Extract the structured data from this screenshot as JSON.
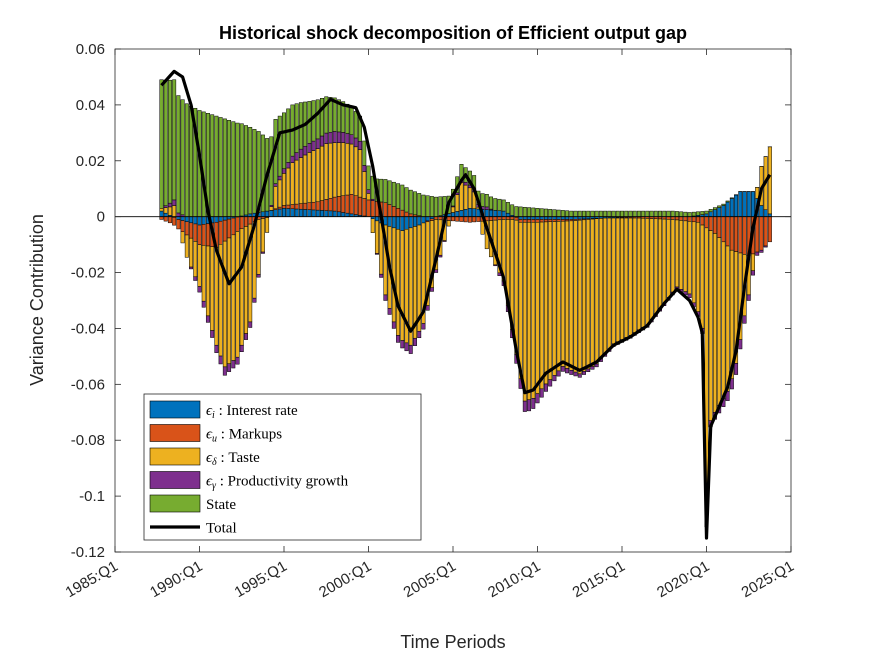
{
  "chart_data": {
    "type": "bar",
    "stacked": true,
    "title": "Historical shock decomposition of Efficient output gap",
    "xlabel": "Time Periods",
    "ylabel": "Variance Contribution",
    "x_range": [
      1985.0,
      2025.0
    ],
    "ylim": [
      -0.12,
      0.06
    ],
    "yticks": [
      0.06,
      0.04,
      0.02,
      0,
      -0.02,
      -0.04,
      -0.06,
      -0.08,
      -0.1,
      -0.12
    ],
    "ytick_labels": [
      "0.06",
      "0.04",
      "0.02",
      "0",
      "-0.02",
      "-0.04",
      "-0.06",
      "-0.08",
      "-0.1",
      "-0.12"
    ],
    "xticks": [
      1985,
      1990,
      1995,
      2000,
      2005,
      2010,
      2015,
      2020,
      2025
    ],
    "xtick_labels": [
      "1985:Q1",
      "1990:Q1",
      "1995:Q1",
      "2000:Q1",
      "2005:Q1",
      "2010:Q1",
      "2015:Q1",
      "2020:Q1",
      "2025:Q1"
    ],
    "grid": false,
    "legend_position": "bottom-left",
    "quarterly_start": "1987:Q4",
    "quarterly_end": "2023:Q4",
    "series": [
      {
        "key": "interest",
        "name": "Interest rate",
        "symbol": "ϵ",
        "subscript": "i",
        "color": "#0072BD",
        "keyframes": [
          [
            1987.75,
            0.002
          ],
          [
            1988.75,
            -0.001
          ],
          [
            1990.0,
            -0.003
          ],
          [
            1991.0,
            -0.002
          ],
          [
            1993.0,
            0.001
          ],
          [
            1995.0,
            0.003
          ],
          [
            1998.0,
            0.002
          ],
          [
            2000.0,
            0.0
          ],
          [
            2001.0,
            -0.003
          ],
          [
            2002.0,
            -0.005
          ],
          [
            2003.0,
            -0.003
          ],
          [
            2004.0,
            0.0
          ],
          [
            2006.0,
            0.003
          ],
          [
            2008.0,
            0.002
          ],
          [
            2009.0,
            -0.001
          ],
          [
            2012.0,
            -0.001
          ],
          [
            2016.0,
            0.0
          ],
          [
            2019.0,
            0.0
          ],
          [
            2020.0,
            0.001
          ],
          [
            2021.0,
            0.004
          ],
          [
            2022.0,
            0.009
          ],
          [
            2022.75,
            0.009
          ],
          [
            2023.25,
            0.004
          ],
          [
            2023.75,
            0.001
          ]
        ]
      },
      {
        "key": "markups",
        "name": "Markups",
        "symbol": "ϵ",
        "subscript": "u",
        "color": "#D95319",
        "keyframes": [
          [
            1987.75,
            -0.001
          ],
          [
            1989.0,
            -0.004
          ],
          [
            1990.0,
            -0.007
          ],
          [
            1991.0,
            -0.009
          ],
          [
            1992.0,
            -0.006
          ],
          [
            1993.5,
            -0.001
          ],
          [
            1995.0,
            0.001
          ],
          [
            1997.0,
            0.003
          ],
          [
            1999.0,
            0.007
          ],
          [
            2001.0,
            0.005
          ],
          [
            2002.5,
            0.001
          ],
          [
            2004.0,
            -0.001
          ],
          [
            2006.0,
            -0.002
          ],
          [
            2008.0,
            -0.001
          ],
          [
            2010.0,
            -0.001
          ],
          [
            2014.0,
            0.0
          ],
          [
            2018.0,
            -0.001
          ],
          [
            2019.5,
            -0.002
          ],
          [
            2020.5,
            -0.006
          ],
          [
            2021.5,
            -0.012
          ],
          [
            2022.5,
            -0.014
          ],
          [
            2023.25,
            -0.012
          ],
          [
            2023.75,
            -0.009
          ]
        ]
      },
      {
        "key": "taste",
        "name": "Taste",
        "symbol": "ϵ",
        "subscript": "δ",
        "color": "#EDB120",
        "keyframes": [
          [
            1987.75,
            0.001
          ],
          [
            1988.5,
            0.004
          ],
          [
            1989.25,
            -0.008
          ],
          [
            1990.0,
            -0.015
          ],
          [
            1990.75,
            -0.03
          ],
          [
            1991.5,
            -0.045
          ],
          [
            1992.25,
            -0.045
          ],
          [
            1993.0,
            -0.035
          ],
          [
            1993.75,
            -0.012
          ],
          [
            1994.5,
            0.008
          ],
          [
            1995.5,
            0.015
          ],
          [
            1996.5,
            0.018
          ],
          [
            1997.5,
            0.02
          ],
          [
            1998.5,
            0.019
          ],
          [
            1999.5,
            0.017
          ],
          [
            2000.25,
            -0.005
          ],
          [
            2001.0,
            -0.025
          ],
          [
            2001.75,
            -0.038
          ],
          [
            2002.5,
            -0.042
          ],
          [
            2003.25,
            -0.036
          ],
          [
            2004.0,
            -0.018
          ],
          [
            2004.75,
            -0.002
          ],
          [
            2005.5,
            0.01
          ],
          [
            2006.25,
            0.006
          ],
          [
            2007.0,
            -0.01
          ],
          [
            2008.0,
            -0.022
          ],
          [
            2008.75,
            -0.048
          ],
          [
            2009.25,
            -0.064
          ],
          [
            2009.75,
            -0.063
          ],
          [
            2010.5,
            -0.058
          ],
          [
            2011.5,
            -0.052
          ],
          [
            2012.5,
            -0.055
          ],
          [
            2013.5,
            -0.052
          ],
          [
            2014.5,
            -0.045
          ],
          [
            2015.5,
            -0.042
          ],
          [
            2016.5,
            -0.038
          ],
          [
            2017.5,
            -0.03
          ],
          [
            2018.25,
            -0.024
          ],
          [
            2019.0,
            -0.026
          ],
          [
            2019.5,
            -0.032
          ],
          [
            2019.9,
            -0.04
          ],
          [
            2020.0,
            -0.105
          ],
          [
            2020.25,
            -0.068
          ],
          [
            2020.75,
            -0.06
          ],
          [
            2021.25,
            -0.052
          ],
          [
            2021.75,
            -0.04
          ],
          [
            2022.25,
            -0.022
          ],
          [
            2022.75,
            -0.006
          ],
          [
            2023.25,
            0.014
          ],
          [
            2023.75,
            0.024
          ]
        ]
      },
      {
        "key": "productivity",
        "name": "Productivity growth",
        "symbol": "ϵ",
        "subscript": "γ",
        "color": "#7E2F8E",
        "keyframes": [
          [
            1987.75,
            0.0
          ],
          [
            1988.5,
            0.002
          ],
          [
            1990.0,
            -0.002
          ],
          [
            1991.5,
            -0.003
          ],
          [
            1993.0,
            -0.002
          ],
          [
            1994.5,
            0.001
          ],
          [
            1996.0,
            0.003
          ],
          [
            1998.0,
            0.004
          ],
          [
            1999.5,
            0.003
          ],
          [
            2001.0,
            -0.002
          ],
          [
            2002.5,
            -0.003
          ],
          [
            2004.0,
            -0.001
          ],
          [
            2005.5,
            0.001
          ],
          [
            2007.0,
            0.001
          ],
          [
            2008.5,
            -0.003
          ],
          [
            2009.5,
            -0.004
          ],
          [
            2011.0,
            -0.002
          ],
          [
            2013.0,
            -0.001
          ],
          [
            2016.0,
            -0.001
          ],
          [
            2018.5,
            -0.001
          ],
          [
            2020.0,
            -0.002
          ],
          [
            2021.0,
            -0.003
          ],
          [
            2021.75,
            -0.004
          ],
          [
            2022.5,
            -0.002
          ],
          [
            2023.75,
            0.0
          ]
        ]
      },
      {
        "key": "state",
        "name": "State",
        "symbol": "",
        "subscript": "",
        "color": "#77AC30",
        "keyframes": [
          [
            1987.75,
            0.046
          ],
          [
            1988.75,
            0.042
          ],
          [
            1990.0,
            0.038
          ],
          [
            1991.5,
            0.035
          ],
          [
            1992.5,
            0.033
          ],
          [
            1993.5,
            0.029
          ],
          [
            1995.0,
            0.02
          ],
          [
            1996.5,
            0.015
          ],
          [
            1998.0,
            0.012
          ],
          [
            1999.5,
            0.009
          ],
          [
            2000.5,
            0.008
          ],
          [
            2002.0,
            0.009
          ],
          [
            2004.0,
            0.007
          ],
          [
            2006.0,
            0.005
          ],
          [
            2008.0,
            0.004
          ],
          [
            2010.0,
            0.003
          ],
          [
            2012.0,
            0.002
          ],
          [
            2015.0,
            0.002
          ],
          [
            2018.0,
            0.002
          ],
          [
            2020.0,
            0.001
          ],
          [
            2022.0,
            0.0
          ],
          [
            2023.75,
            0.0
          ]
        ]
      }
    ],
    "total": {
      "name": "Total",
      "color": "#000000",
      "keyframes": [
        [
          1987.75,
          0.047
        ],
        [
          1988.5,
          0.052
        ],
        [
          1989.0,
          0.05
        ],
        [
          1989.5,
          0.04
        ],
        [
          1990.0,
          0.022
        ],
        [
          1990.5,
          0.002
        ],
        [
          1991.0,
          -0.012
        ],
        [
          1991.75,
          -0.024
        ],
        [
          1992.5,
          -0.018
        ],
        [
          1993.25,
          -0.003
        ],
        [
          1994.0,
          0.015
        ],
        [
          1994.75,
          0.03
        ],
        [
          1995.5,
          0.031
        ],
        [
          1996.25,
          0.033
        ],
        [
          1997.0,
          0.037
        ],
        [
          1997.75,
          0.042
        ],
        [
          1998.5,
          0.04
        ],
        [
          1999.25,
          0.039
        ],
        [
          1999.75,
          0.032
        ],
        [
          2000.25,
          0.018
        ],
        [
          2000.75,
          0.0
        ],
        [
          2001.25,
          -0.018
        ],
        [
          2001.75,
          -0.032
        ],
        [
          2002.5,
          -0.041
        ],
        [
          2003.25,
          -0.034
        ],
        [
          2004.0,
          -0.015
        ],
        [
          2004.75,
          0.005
        ],
        [
          2005.5,
          0.013
        ],
        [
          2005.75,
          0.015
        ],
        [
          2006.25,
          0.01
        ],
        [
          2007.0,
          -0.004
        ],
        [
          2008.0,
          -0.022
        ],
        [
          2008.75,
          -0.048
        ],
        [
          2009.25,
          -0.063
        ],
        [
          2009.75,
          -0.062
        ],
        [
          2010.5,
          -0.056
        ],
        [
          2011.5,
          -0.052
        ],
        [
          2012.5,
          -0.055
        ],
        [
          2013.5,
          -0.052
        ],
        [
          2014.5,
          -0.046
        ],
        [
          2015.5,
          -0.043
        ],
        [
          2016.5,
          -0.039
        ],
        [
          2017.5,
          -0.031
        ],
        [
          2018.25,
          -0.026
        ],
        [
          2019.0,
          -0.03
        ],
        [
          2019.5,
          -0.036
        ],
        [
          2019.9,
          -0.045
        ],
        [
          2020.0,
          -0.115
        ],
        [
          2020.25,
          -0.075
        ],
        [
          2020.75,
          -0.068
        ],
        [
          2021.25,
          -0.061
        ],
        [
          2021.75,
          -0.048
        ],
        [
          2022.25,
          -0.025
        ],
        [
          2022.75,
          -0.004
        ],
        [
          2023.25,
          0.01
        ],
        [
          2023.75,
          0.015
        ]
      ]
    }
  }
}
